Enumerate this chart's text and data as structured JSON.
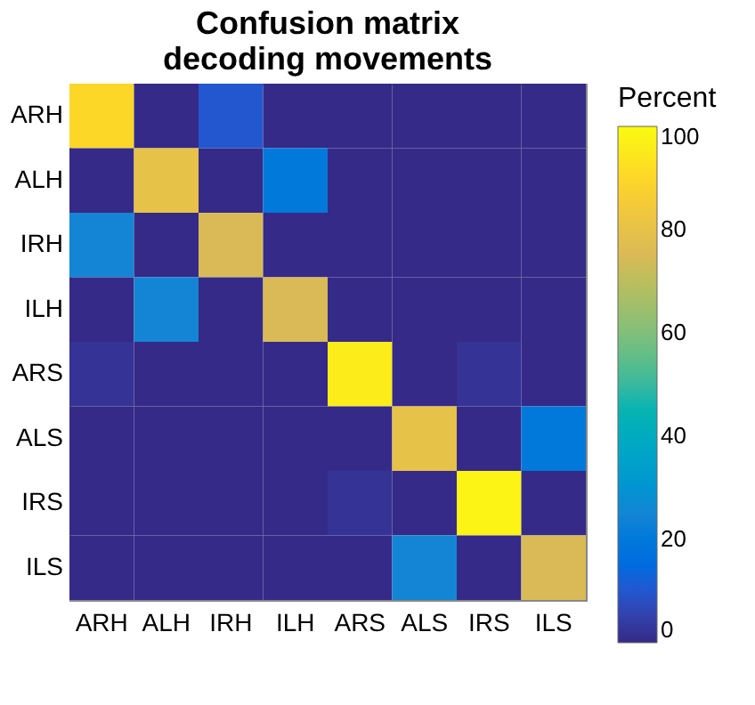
{
  "chart_data": {
    "type": "heatmap",
    "title": [
      "Confusion matrix",
      "decoding movements"
    ],
    "clabel": "Percent",
    "categories": [
      "ARH",
      "ALH",
      "IRH",
      "ILH",
      "ARS",
      "ALS",
      "IRS",
      "ILS"
    ],
    "y_categories": [
      "ARH",
      "ALH",
      "IRH",
      "ILH",
      "ARS",
      "ALS",
      "IRS",
      "ILS"
    ],
    "cells": [
      [
        90,
        0,
        10,
        0,
        0,
        0,
        0,
        0
      ],
      [
        0,
        80,
        0,
        20,
        0,
        0,
        0,
        0
      ],
      [
        25,
        0,
        75,
        0,
        0,
        0,
        0,
        0
      ],
      [
        0,
        25,
        0,
        75,
        0,
        0,
        0,
        0
      ],
      [
        2,
        0,
        0,
        0,
        96,
        0,
        2,
        0
      ],
      [
        0,
        0,
        0,
        0,
        0,
        80,
        0,
        20
      ],
      [
        0,
        0,
        0,
        0,
        2,
        0,
        98,
        0
      ],
      [
        0,
        0,
        0,
        0,
        0,
        25,
        0,
        75
      ]
    ],
    "clim": [
      0,
      100
    ],
    "cticks": [
      0,
      20,
      40,
      60,
      80,
      100
    ]
  }
}
